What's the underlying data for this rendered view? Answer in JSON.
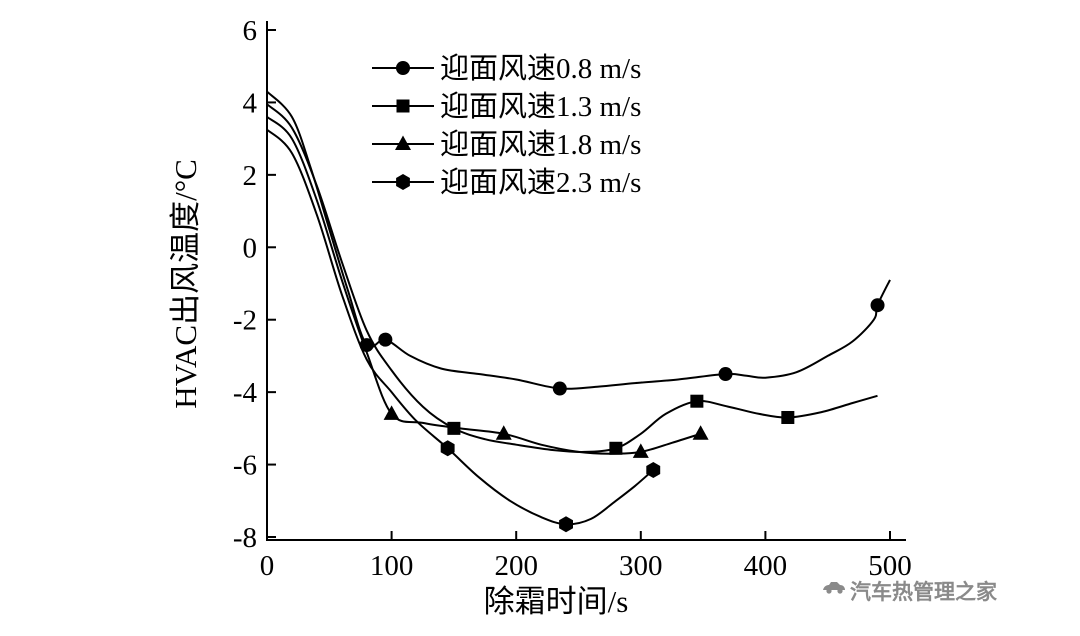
{
  "chart_data": {
    "type": "line",
    "title": "",
    "xlabel": "除霜时间/s",
    "ylabel": "HVAC出风温度/°C",
    "xlim": [
      0,
      500
    ],
    "ylim": [
      -8,
      6
    ],
    "x_ticks": [
      0,
      100,
      200,
      300,
      400,
      500
    ],
    "y_ticks": [
      6,
      4,
      2,
      0,
      -2,
      -4,
      -6,
      -8
    ],
    "grid": false,
    "legend_position": "inside-top",
    "line_color": "#000000",
    "series": [
      {
        "name": "迎面风速0.8 m/s",
        "marker": "circle",
        "points": [
          [
            0,
            4.3
          ],
          [
            20,
            3.6
          ],
          [
            35,
            2.2
          ],
          [
            50,
            0.5
          ],
          [
            65,
            -1.2
          ],
          [
            80,
            -2.7
          ],
          [
            95,
            -2.55
          ],
          [
            115,
            -3.0
          ],
          [
            140,
            -3.35
          ],
          [
            170,
            -3.5
          ],
          [
            200,
            -3.65
          ],
          [
            235,
            -3.9
          ],
          [
            265,
            -3.85
          ],
          [
            295,
            -3.75
          ],
          [
            330,
            -3.65
          ],
          [
            368,
            -3.5
          ],
          [
            385,
            -3.55
          ],
          [
            400,
            -3.6
          ],
          [
            425,
            -3.45
          ],
          [
            450,
            -3.0
          ],
          [
            470,
            -2.6
          ],
          [
            487,
            -2.0
          ],
          [
            490,
            -1.6
          ],
          [
            500,
            -0.9
          ]
        ],
        "marker_points": [
          [
            80,
            -2.7
          ],
          [
            95,
            -2.55
          ],
          [
            235,
            -3.9
          ],
          [
            368,
            -3.5
          ],
          [
            490,
            -1.6
          ]
        ]
      },
      {
        "name": "迎面风速1.3 m/s",
        "marker": "square",
        "points": [
          [
            0,
            3.95
          ],
          [
            20,
            3.3
          ],
          [
            40,
            1.7
          ],
          [
            60,
            -0.4
          ],
          [
            80,
            -2.3
          ],
          [
            100,
            -3.4
          ],
          [
            125,
            -4.4
          ],
          [
            150,
            -5.0
          ],
          [
            175,
            -5.3
          ],
          [
            200,
            -5.45
          ],
          [
            230,
            -5.6
          ],
          [
            255,
            -5.65
          ],
          [
            280,
            -5.55
          ],
          [
            300,
            -5.15
          ],
          [
            320,
            -4.6
          ],
          [
            345,
            -4.25
          ],
          [
            370,
            -4.4
          ],
          [
            395,
            -4.6
          ],
          [
            418,
            -4.7
          ],
          [
            445,
            -4.55
          ],
          [
            470,
            -4.3
          ],
          [
            490,
            -4.1
          ]
        ],
        "marker_points": [
          [
            150,
            -5.0
          ],
          [
            280,
            -5.55
          ],
          [
            345,
            -4.25
          ],
          [
            418,
            -4.7
          ]
        ]
      },
      {
        "name": "迎面风速1.8 m/s",
        "marker": "triangle",
        "points": [
          [
            0,
            3.6
          ],
          [
            20,
            3.0
          ],
          [
            40,
            1.3
          ],
          [
            60,
            -0.9
          ],
          [
            80,
            -2.9
          ],
          [
            100,
            -4.6
          ],
          [
            125,
            -4.85
          ],
          [
            155,
            -5.0
          ],
          [
            190,
            -5.15
          ],
          [
            220,
            -5.45
          ],
          [
            250,
            -5.65
          ],
          [
            275,
            -5.7
          ],
          [
            300,
            -5.65
          ],
          [
            325,
            -5.4
          ],
          [
            348,
            -5.15
          ]
        ],
        "marker_points": [
          [
            100,
            -4.6
          ],
          [
            190,
            -5.15
          ],
          [
            300,
            -5.65
          ],
          [
            348,
            -5.15
          ]
        ]
      },
      {
        "name": "迎面风速2.3 m/s",
        "marker": "hexagon",
        "points": [
          [
            0,
            3.25
          ],
          [
            20,
            2.6
          ],
          [
            40,
            0.9
          ],
          [
            60,
            -1.3
          ],
          [
            80,
            -3.1
          ],
          [
            100,
            -4.0
          ],
          [
            120,
            -4.8
          ],
          [
            145,
            -5.55
          ],
          [
            170,
            -6.35
          ],
          [
            195,
            -7.0
          ],
          [
            220,
            -7.45
          ],
          [
            240,
            -7.65
          ],
          [
            260,
            -7.5
          ],
          [
            280,
            -7.0
          ],
          [
            295,
            -6.6
          ],
          [
            310,
            -6.15
          ]
        ],
        "marker_points": [
          [
            145,
            -5.55
          ],
          [
            240,
            -7.65
          ],
          [
            310,
            -6.15
          ]
        ]
      }
    ]
  },
  "watermark": {
    "text": "汽车热管理之家",
    "icon": "car-logo-icon",
    "color": "#8a8a8a"
  }
}
